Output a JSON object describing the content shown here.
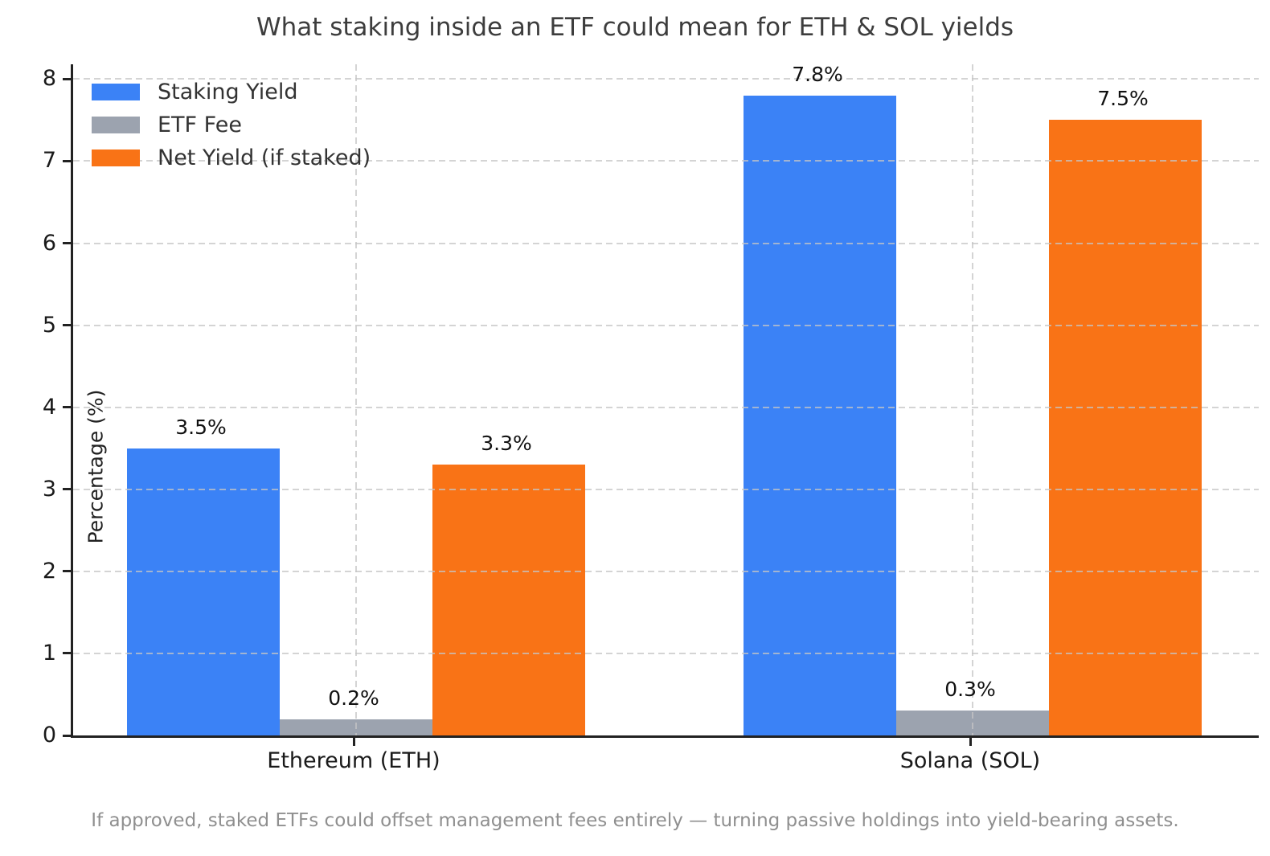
{
  "title": "What staking inside an ETF could mean for ETH & SOL yields",
  "footnote": "If approved, staked ETFs could offset management fees entirely — turning passive holdings into yield-bearing assets.",
  "colors": {
    "staking_yield": "#3b82f6",
    "etf_fee": "#9ca3af",
    "net_yield": "#f97316",
    "axis": "#222222",
    "grid": "#c5c5c5",
    "title_text": "#3d3d3d",
    "footnote_text": "#8f8f8f"
  },
  "chart_data": {
    "type": "bar",
    "categories": [
      "Ethereum (ETH)",
      "Solana (SOL)"
    ],
    "series": [
      {
        "name": "Staking Yield",
        "color": "#3b82f6",
        "values": [
          3.5,
          7.8
        ],
        "labels": [
          "3.5%",
          "7.8%"
        ]
      },
      {
        "name": "ETF Fee",
        "color": "#9ca3af",
        "values": [
          0.2,
          0.3
        ],
        "labels": [
          "0.2%",
          "0.3%"
        ]
      },
      {
        "name": "Net Yield (if staked)",
        "color": "#f97316",
        "values": [
          3.3,
          7.5
        ],
        "labels": [
          "3.3%",
          "7.5%"
        ]
      }
    ],
    "title": "What staking inside an ETF could mean for ETH & SOL yields",
    "xlabel": "",
    "ylabel": "Percentage (%)",
    "ylim": [
      0,
      8.18
    ],
    "yticks": [
      0,
      1,
      2,
      3,
      4,
      5,
      6,
      7,
      8
    ],
    "grid": true,
    "grid_style": "dashed",
    "legend_position": "upper-left",
    "bar_value_labels_shown": true
  }
}
